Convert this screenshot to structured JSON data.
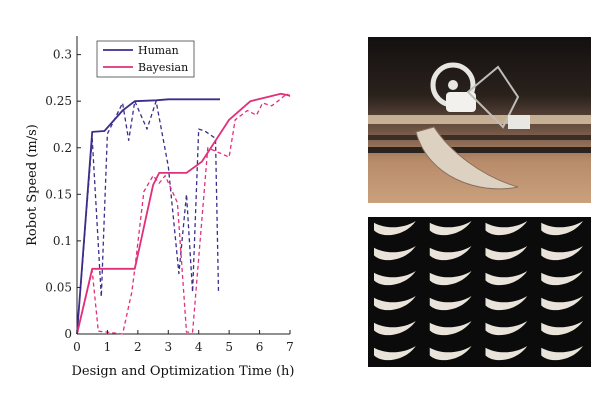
{
  "chart_data": {
    "type": "line",
    "title": "",
    "xlabel": "Design and Optimization Time (h)",
    "ylabel": "Robot Speed  (m/s)",
    "xlim": [
      0,
      7
    ],
    "ylim": [
      0,
      0.32
    ],
    "xticks": [
      0,
      1,
      2,
      3,
      4,
      5,
      6,
      7
    ],
    "yticks": [
      0,
      0.05,
      0.1,
      0.15,
      0.2,
      0.25,
      0.3
    ],
    "xtick_labels": [
      "0",
      "1",
      "2",
      "3",
      "4",
      "5",
      "6",
      "7"
    ],
    "ytick_labels": [
      "0",
      "0.05",
      "0.1",
      "0.15",
      "0.2",
      "0.25",
      "0.3"
    ],
    "grid": false,
    "legend": {
      "position": "top-left",
      "entries": [
        "Human",
        "Bayesian"
      ]
    },
    "series": [
      {
        "name": "Human",
        "style": "solid",
        "color": "#3b2d8a",
        "x": [
          0,
          0.5,
          0.9,
          1.5,
          1.9,
          2.6,
          3.0,
          3.5,
          4.0,
          4.7
        ],
        "y": [
          0,
          0.217,
          0.218,
          0.24,
          0.25,
          0.251,
          0.252,
          0.252,
          0.252,
          0.252
        ]
      },
      {
        "name": "Human",
        "style": "dashed",
        "color": "#3b2d8a",
        "x": [
          0,
          0.5,
          0.8,
          1.0,
          1.5,
          1.7,
          1.9,
          2.3,
          2.6,
          3.0,
          3.35,
          3.6,
          3.8,
          4.0,
          4.2,
          4.55,
          4.65
        ],
        "y": [
          0,
          0.21,
          0.04,
          0.215,
          0.248,
          0.208,
          0.25,
          0.22,
          0.25,
          0.18,
          0.065,
          0.15,
          0.045,
          0.22,
          0.218,
          0.21,
          0.045
        ]
      },
      {
        "name": "Bayesian",
        "style": "solid",
        "color": "#e0307a",
        "x": [
          0,
          0.5,
          1.0,
          1.5,
          1.9,
          2.5,
          2.7,
          3.6,
          4.1,
          4.6,
          5.0,
          5.7,
          6.7,
          7.0
        ],
        "y": [
          0,
          0.07,
          0.07,
          0.07,
          0.07,
          0.16,
          0.173,
          0.173,
          0.185,
          0.21,
          0.23,
          0.25,
          0.258,
          0.256
        ]
      },
      {
        "name": "Bayesian",
        "style": "dashed",
        "color": "#e0307a",
        "x": [
          0,
          0.5,
          0.7,
          1.0,
          1.5,
          1.8,
          1.9,
          2.2,
          2.5,
          2.7,
          2.9,
          3.3,
          3.6,
          3.8,
          4.3,
          5.0,
          5.2,
          5.6,
          5.9,
          6.1,
          6.4,
          6.6,
          6.9,
          7.0
        ],
        "y": [
          0,
          0.068,
          0.003,
          0.002,
          0.0,
          0.045,
          0.07,
          0.153,
          0.17,
          0.162,
          0.17,
          0.141,
          0.002,
          0.002,
          0.2,
          0.19,
          0.23,
          0.24,
          0.235,
          0.248,
          0.245,
          0.25,
          0.258,
          0.255
        ]
      }
    ]
  }
}
